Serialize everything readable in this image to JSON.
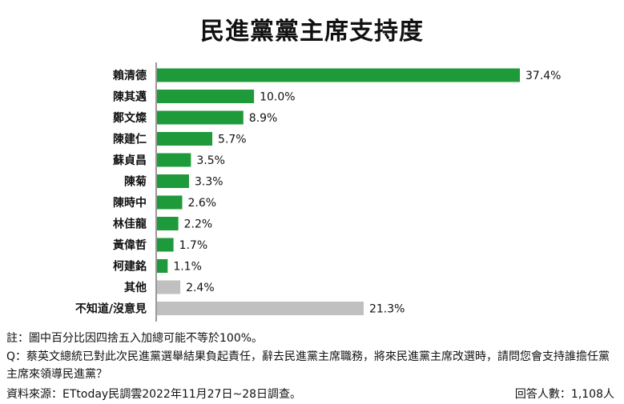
{
  "chart_data": {
    "type": "bar",
    "orientation": "horizontal",
    "title": "民進黨黨主席支持度",
    "categories": [
      "賴清德",
      "陳其邁",
      "鄭文燦",
      "陳建仁",
      "蘇貞昌",
      "陳菊",
      "陳時中",
      "林佳龍",
      "黃偉哲",
      "柯建銘",
      "其他",
      "不知道/沒意見"
    ],
    "values": [
      37.4,
      10.0,
      8.9,
      5.7,
      3.5,
      3.3,
      2.6,
      2.2,
      1.7,
      1.1,
      2.4,
      21.3
    ],
    "value_labels": [
      "37.4%",
      "10.0%",
      "8.9%",
      "5.7%",
      "3.5%",
      "3.3%",
      "2.6%",
      "2.2%",
      "1.7%",
      "1.1%",
      "2.4%",
      "21.3%"
    ],
    "bar_colors": [
      "#1f9a3a",
      "#1f9a3a",
      "#1f9a3a",
      "#1f9a3a",
      "#1f9a3a",
      "#1f9a3a",
      "#1f9a3a",
      "#1f9a3a",
      "#1f9a3a",
      "#1f9a3a",
      "#c0c0c0",
      "#c0c0c0"
    ],
    "xlim": [
      0,
      40
    ],
    "grid": false,
    "legend": "none"
  },
  "notes": {
    "note1": "註：圖中百分比因四捨五入加總可能不等於100%。",
    "note2": "Q：蔡英文總統已對此次民進黨選舉結果負起責任，辭去民進黨主席職務，將來民進黨主席改選時，請問您會支持誰擔任黨主席來領導民進黨？",
    "source": "資料來源：ETtoday民調雲2022年11月27日~28日調查。",
    "respondents": "回答人數：1,108人"
  }
}
